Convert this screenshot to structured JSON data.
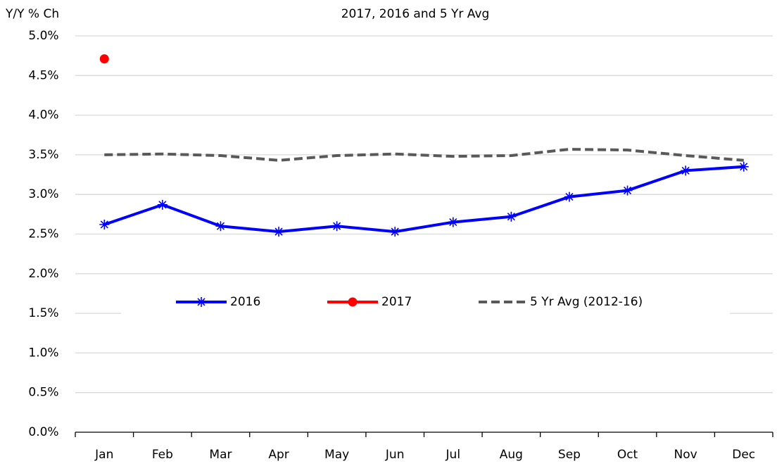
{
  "chart_data": {
    "type": "line",
    "title": "2017, 2016 and 5 Yr Avg",
    "y_label": "Y/Y % Ch",
    "categories": [
      "Jan",
      "Feb",
      "Mar",
      "Apr",
      "May",
      "Jun",
      "Jul",
      "Aug",
      "Sep",
      "Oct",
      "Nov",
      "Dec"
    ],
    "series": [
      {
        "name": "2016",
        "color": "#0000ff",
        "line_style": "solid",
        "marker": "star",
        "values": [
          2.62,
          2.87,
          2.6,
          2.53,
          2.6,
          2.53,
          2.65,
          2.72,
          2.97,
          3.05,
          3.3,
          3.35
        ]
      },
      {
        "name": "2017",
        "color": "#ff0000",
        "line_style": "solid",
        "marker": "circle",
        "values": [
          4.71,
          null,
          null,
          null,
          null,
          null,
          null,
          null,
          null,
          null,
          null,
          null
        ]
      },
      {
        "name": "5 Yr Avg (2012-16)",
        "color": "#595959",
        "line_style": "dashed",
        "marker": null,
        "values": [
          3.5,
          3.51,
          3.49,
          3.43,
          3.49,
          3.51,
          3.48,
          3.49,
          3.57,
          3.56,
          3.49,
          3.43
        ]
      }
    ],
    "ylim": [
      0,
      5
    ],
    "yticks": [
      {
        "value": 0,
        "label": "0.0%"
      },
      {
        "value": 0.5,
        "label": "0.5%"
      },
      {
        "value": 1,
        "label": "1.0%"
      },
      {
        "value": 1.5,
        "label": "1.5%"
      },
      {
        "value": 2,
        "label": "2.0%"
      },
      {
        "value": 2.5,
        "label": "2.5%"
      },
      {
        "value": 3,
        "label": "3.0%"
      },
      {
        "value": 3.5,
        "label": "3.5%"
      },
      {
        "value": 4,
        "label": "4.0%"
      },
      {
        "value": 4.5,
        "label": "4.5%"
      },
      {
        "value": 5,
        "label": "5.0%"
      }
    ],
    "grid": true,
    "legend": "center"
  }
}
